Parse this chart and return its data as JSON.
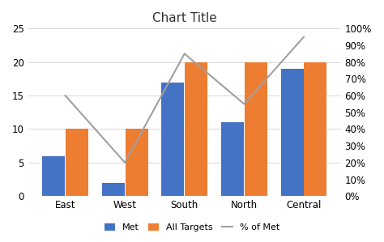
{
  "categories": [
    "East",
    "West",
    "South",
    "North",
    "Central"
  ],
  "met": [
    6,
    2,
    17,
    11,
    19
  ],
  "all_targets": [
    10,
    10,
    20,
    20,
    20
  ],
  "pct_of_met": [
    0.6,
    0.2,
    0.85,
    0.55,
    0.95
  ],
  "bar_color_met": "#4472C4",
  "bar_color_targets": "#ED7D31",
  "line_color": "#A0A0A0",
  "title": "Chart Title",
  "left_ylim": [
    0,
    25
  ],
  "right_ylim": [
    0,
    1.0
  ],
  "left_yticks": [
    0,
    5,
    10,
    15,
    20,
    25
  ],
  "right_yticks": [
    0.0,
    0.1,
    0.2,
    0.3,
    0.4,
    0.5,
    0.6,
    0.7,
    0.8,
    0.9,
    1.0
  ],
  "legend_labels": [
    "Met",
    "All Targets",
    "% of Met"
  ],
  "background_color": "#ffffff",
  "bar_width": 0.38,
  "bar_gap": 0.01
}
